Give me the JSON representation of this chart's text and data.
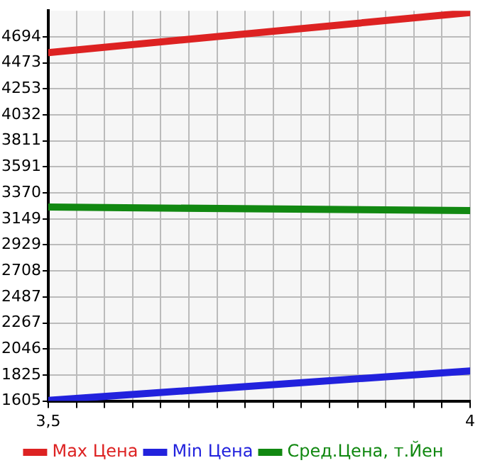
{
  "chart_data": {
    "type": "line",
    "x": [
      3.5,
      4
    ],
    "series": [
      {
        "name": "Max Цена",
        "color": "#dd2222",
        "values": [
          4560,
          4900
        ]
      },
      {
        "name": "Min Цена",
        "color": "#2222dd",
        "values": [
          1610,
          1860
        ]
      },
      {
        "name": "Сред.Цена, т.Йен",
        "color": "#118811",
        "values": [
          3250,
          3220
        ]
      }
    ],
    "xlim": [
      3.5,
      4
    ],
    "xticks": [
      {
        "value": 3.5,
        "label": "3,5"
      },
      {
        "value": 3.5333,
        "label": null
      },
      {
        "value": 3.5667,
        "label": null
      },
      {
        "value": 3.6,
        "label": null
      },
      {
        "value": 3.6333,
        "label": null
      },
      {
        "value": 3.6667,
        "label": null
      },
      {
        "value": 3.7,
        "label": null
      },
      {
        "value": 3.7333,
        "label": null
      },
      {
        "value": 3.7667,
        "label": null
      },
      {
        "value": 3.8,
        "label": null
      },
      {
        "value": 3.8333,
        "label": null
      },
      {
        "value": 3.8667,
        "label": null
      },
      {
        "value": 3.9,
        "label": null
      },
      {
        "value": 3.9333,
        "label": null
      },
      {
        "value": 3.9667,
        "label": null
      },
      {
        "value": 4,
        "label": "4"
      }
    ],
    "ylim": [
      1605,
      4915
    ],
    "yticks": [
      1605,
      1825,
      2046,
      2267,
      2487,
      2708,
      2929,
      3149,
      3370,
      3591,
      3811,
      4032,
      4253,
      4473,
      4694
    ],
    "grid": true,
    "legend": "bottom",
    "marker": "none",
    "line_style": "solid"
  }
}
